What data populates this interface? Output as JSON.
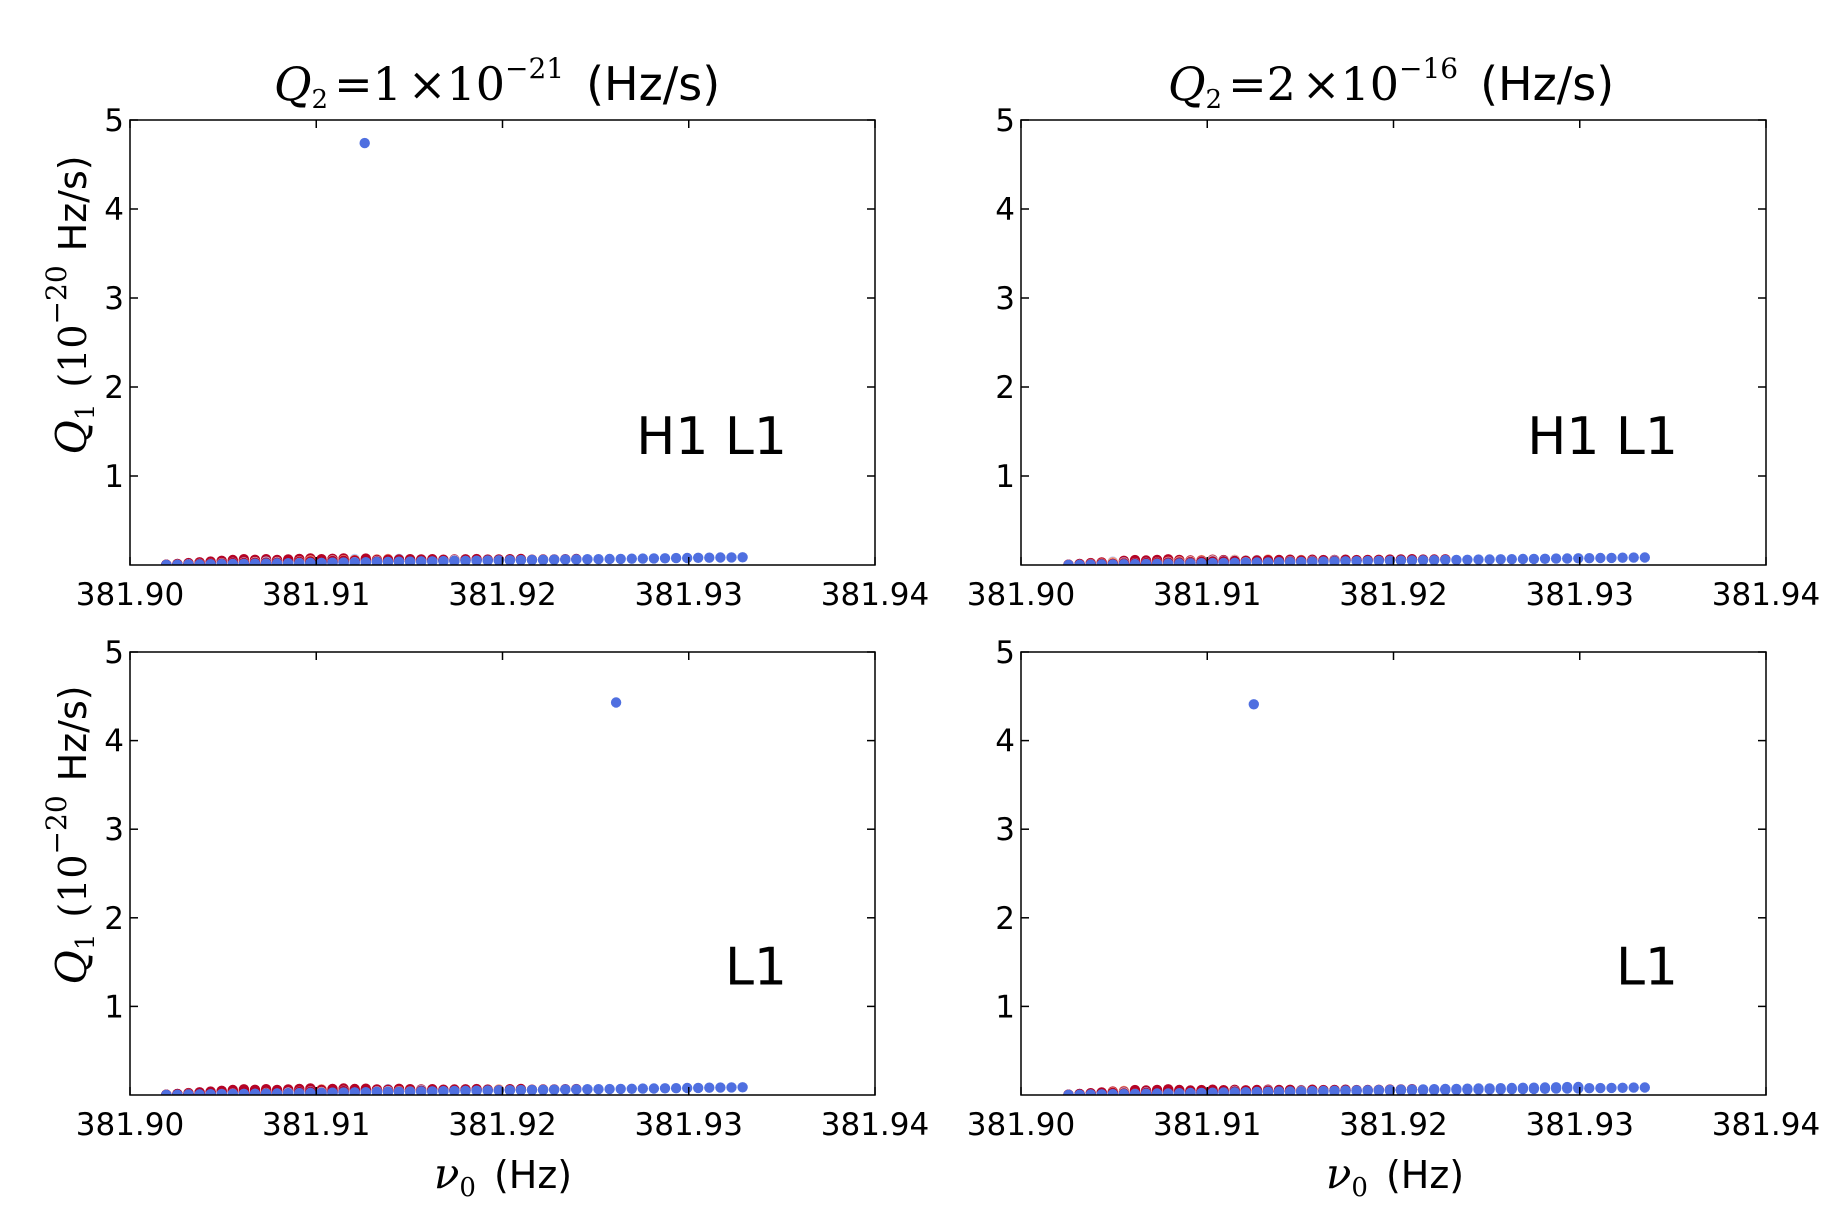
{
  "figure": {
    "column_titles": [
      {
        "q": "Q",
        "q_sub": "2",
        "eq": "=1",
        "times": "×10",
        "exp": "−21",
        "unit": "(Hz/s)"
      },
      {
        "q": "Q",
        "q_sub": "2",
        "eq": "=2",
        "times": "×10",
        "exp": "−16",
        "unit": "(Hz/s)"
      }
    ],
    "y_axis_label": {
      "q": "Q",
      "q_sub": "1",
      "open": "(10",
      "exp": "−20",
      "unit": "Hz/s)"
    },
    "x_axis_label": {
      "nu": "ν",
      "nu_sub": "0",
      "unit": "(Hz)"
    }
  },
  "chart_data": [
    {
      "type": "scatter",
      "id": "top-left",
      "annotation": "H1 L1",
      "xlim": [
        381.9,
        381.94
      ],
      "ylim": [
        0,
        5
      ],
      "xticks": [
        "381.90",
        "381.91",
        "381.92",
        "381.93",
        "381.94"
      ],
      "yticks": [
        "1",
        "2",
        "3",
        "4",
        "5"
      ],
      "colors": {
        "high": "#b40426",
        "warm": "#f4987a",
        "neutral": "#dddcdc",
        "light": "#b7cff9",
        "low": "#4f6fe0"
      },
      "fan_lines_x0": 381.9017,
      "fan_lines": [
        {
          "slope_qpd": 0.8166,
          "x_end": 381.9063,
          "hue": "high"
        },
        {
          "slope_qpd": 0.6458,
          "x_end": 381.9078,
          "hue": "high"
        },
        {
          "slope_qpd": 0.5151,
          "x_end": 381.9099,
          "hue": "high"
        },
        {
          "slope_qpd": 0.4196,
          "x_end": 381.9115,
          "hue": "high"
        },
        {
          "slope_qpd": 0.3623,
          "x_end": 381.9128,
          "hue": "warm"
        },
        {
          "slope_qpd": 0.3059,
          "x_end": 381.9145,
          "hue": "warm"
        },
        {
          "slope_qpd": 0.2712,
          "x_end": 381.9153,
          "hue": "high"
        },
        {
          "slope_qpd": 0.2505,
          "x_end": 381.9167,
          "hue": "high"
        },
        {
          "slope_qpd": 0.2184,
          "x_end": 381.919,
          "hue": "high"
        },
        {
          "slope_qpd": 0.1939,
          "x_end": 381.9211,
          "hue": "high"
        },
        {
          "slope_qpd": 0.1673,
          "x_end": 381.924,
          "hue": "high"
        },
        {
          "slope_qpd": 0.156,
          "x_end": 381.925,
          "hue": "low"
        },
        {
          "slope_qpd": 0.1551,
          "x_end": 381.9333,
          "hue": "low"
        }
      ],
      "outliers": [
        {
          "x": 381.9126,
          "y": 4.74,
          "hue": "low"
        }
      ]
    },
    {
      "type": "scatter",
      "id": "top-right",
      "annotation": "H1 L1",
      "xlim": [
        381.9,
        381.94
      ],
      "ylim": [
        0,
        5
      ],
      "xticks": [
        "381.90",
        "381.91",
        "381.92",
        "381.93",
        "381.94"
      ],
      "yticks": [
        "1",
        "2",
        "3",
        "4",
        "5"
      ],
      "colors": {
        "high": "#b40426",
        "warm": "#f4987a",
        "neutral": "#dddcdc",
        "light": "#b7cff9",
        "low": "#4f6fe0"
      },
      "fan_lines_x0": 381.9023,
      "fan_lines": [
        {
          "slope_qpd": 0.8054,
          "x_end": 381.9065,
          "hue": "high"
        },
        {
          "slope_qpd": 0.6377,
          "x_end": 381.908,
          "hue": "high"
        },
        {
          "slope_qpd": 0.5101,
          "x_end": 381.909,
          "hue": "high"
        },
        {
          "slope_qpd": 0.415,
          "x_end": 381.9105,
          "hue": "warm"
        },
        {
          "slope_qpd": 0.3529,
          "x_end": 381.912,
          "hue": "warm"
        },
        {
          "slope_qpd": 0.3048,
          "x_end": 381.9135,
          "hue": "neutral"
        },
        {
          "slope_qpd": 0.2707,
          "x_end": 381.9148,
          "hue": "high"
        },
        {
          "slope_qpd": 0.2474,
          "x_end": 381.916,
          "hue": "high"
        },
        {
          "slope_qpd": 0.219,
          "x_end": 381.918,
          "hue": "high"
        },
        {
          "slope_qpd": 0.1937,
          "x_end": 381.921,
          "hue": "high"
        },
        {
          "slope_qpd": 0.1733,
          "x_end": 381.923,
          "hue": "high"
        },
        {
          "slope_qpd": 0.1509,
          "x_end": 381.934,
          "hue": "low"
        }
      ],
      "outliers": []
    },
    {
      "type": "scatter",
      "id": "bottom-left",
      "annotation": "L1",
      "xlim": [
        381.9,
        381.94
      ],
      "ylim": [
        0,
        5
      ],
      "xticks": [
        "381.90",
        "381.91",
        "381.92",
        "381.93",
        "381.94"
      ],
      "yticks": [
        "1",
        "2",
        "3",
        "4",
        "5"
      ],
      "colors": {
        "high": "#b40426",
        "warm": "#f4987a",
        "neutral": "#dddcdc",
        "light": "#b7cff9",
        "low": "#4f6fe0"
      },
      "fan_lines_x0": 381.9017,
      "fan_lines": [
        {
          "slope_qpd": 0.8166,
          "x_end": 381.9063,
          "hue": "high"
        },
        {
          "slope_qpd": 0.6458,
          "x_end": 381.9078,
          "hue": "high"
        },
        {
          "slope_qpd": 0.5151,
          "x_end": 381.9099,
          "hue": "high"
        },
        {
          "slope_qpd": 0.4196,
          "x_end": 381.9115,
          "hue": "high"
        },
        {
          "slope_qpd": 0.3623,
          "x_end": 381.9128,
          "hue": "high"
        },
        {
          "slope_qpd": 0.3059,
          "x_end": 381.9145,
          "hue": "high"
        },
        {
          "slope_qpd": 0.2712,
          "x_end": 381.9153,
          "hue": "high"
        },
        {
          "slope_qpd": 0.2505,
          "x_end": 381.9167,
          "hue": "high"
        },
        {
          "slope_qpd": 0.2184,
          "x_end": 381.919,
          "hue": "high"
        },
        {
          "slope_qpd": 0.1939,
          "x_end": 381.9211,
          "hue": "high"
        },
        {
          "slope_qpd": 0.1673,
          "x_end": 381.924,
          "hue": "high"
        },
        {
          "slope_qpd": 0.156,
          "x_end": 381.925,
          "hue": "low"
        },
        {
          "slope_qpd": 0.1551,
          "x_end": 381.9333,
          "hue": "low"
        }
      ],
      "outliers": [
        {
          "x": 381.9261,
          "y": 4.43,
          "hue": "low"
        }
      ]
    },
    {
      "type": "scatter",
      "id": "bottom-right",
      "annotation": "L1",
      "xlim": [
        381.9,
        381.94
      ],
      "ylim": [
        0,
        5
      ],
      "xticks": [
        "381.90",
        "381.91",
        "381.92",
        "381.93",
        "381.94"
      ],
      "yticks": [
        "1",
        "2",
        "3",
        "4",
        "5"
      ],
      "colors": {
        "high": "#b40426",
        "warm": "#f4987a",
        "neutral": "#dddcdc",
        "light": "#b7cff9",
        "low": "#4f6fe0"
      },
      "fan_lines_x0": 381.9023,
      "fan_lines": [
        {
          "slope_qpd": 0.8054,
          "x_end": 381.9065,
          "hue": "high"
        },
        {
          "slope_qpd": 0.6377,
          "x_end": 381.908,
          "hue": "high"
        },
        {
          "slope_qpd": 0.5101,
          "x_end": 381.909,
          "hue": "high"
        },
        {
          "slope_qpd": 0.415,
          "x_end": 381.9105,
          "hue": "high"
        },
        {
          "slope_qpd": 0.3529,
          "x_end": 381.912,
          "hue": "high"
        },
        {
          "slope_qpd": 0.3048,
          "x_end": 381.9135,
          "hue": "high"
        },
        {
          "slope_qpd": 0.2707,
          "x_end": 381.9148,
          "hue": "high"
        },
        {
          "slope_qpd": 0.2474,
          "x_end": 381.916,
          "hue": "high"
        },
        {
          "slope_qpd": 0.219,
          "x_end": 381.918,
          "hue": "high"
        },
        {
          "slope_qpd": 0.1937,
          "x_end": 381.921,
          "hue": "high"
        },
        {
          "slope_qpd": 0.1733,
          "x_end": 381.923,
          "hue": "high"
        },
        {
          "slope_qpd": 0.1509,
          "x_end": 381.934,
          "hue": "low"
        },
        {
          "slope_qpd": 0.1822,
          "x_end": 381.93,
          "hue": "low"
        }
      ],
      "outliers": [
        {
          "x": 381.9125,
          "y": 4.41,
          "hue": "low"
        }
      ]
    }
  ]
}
